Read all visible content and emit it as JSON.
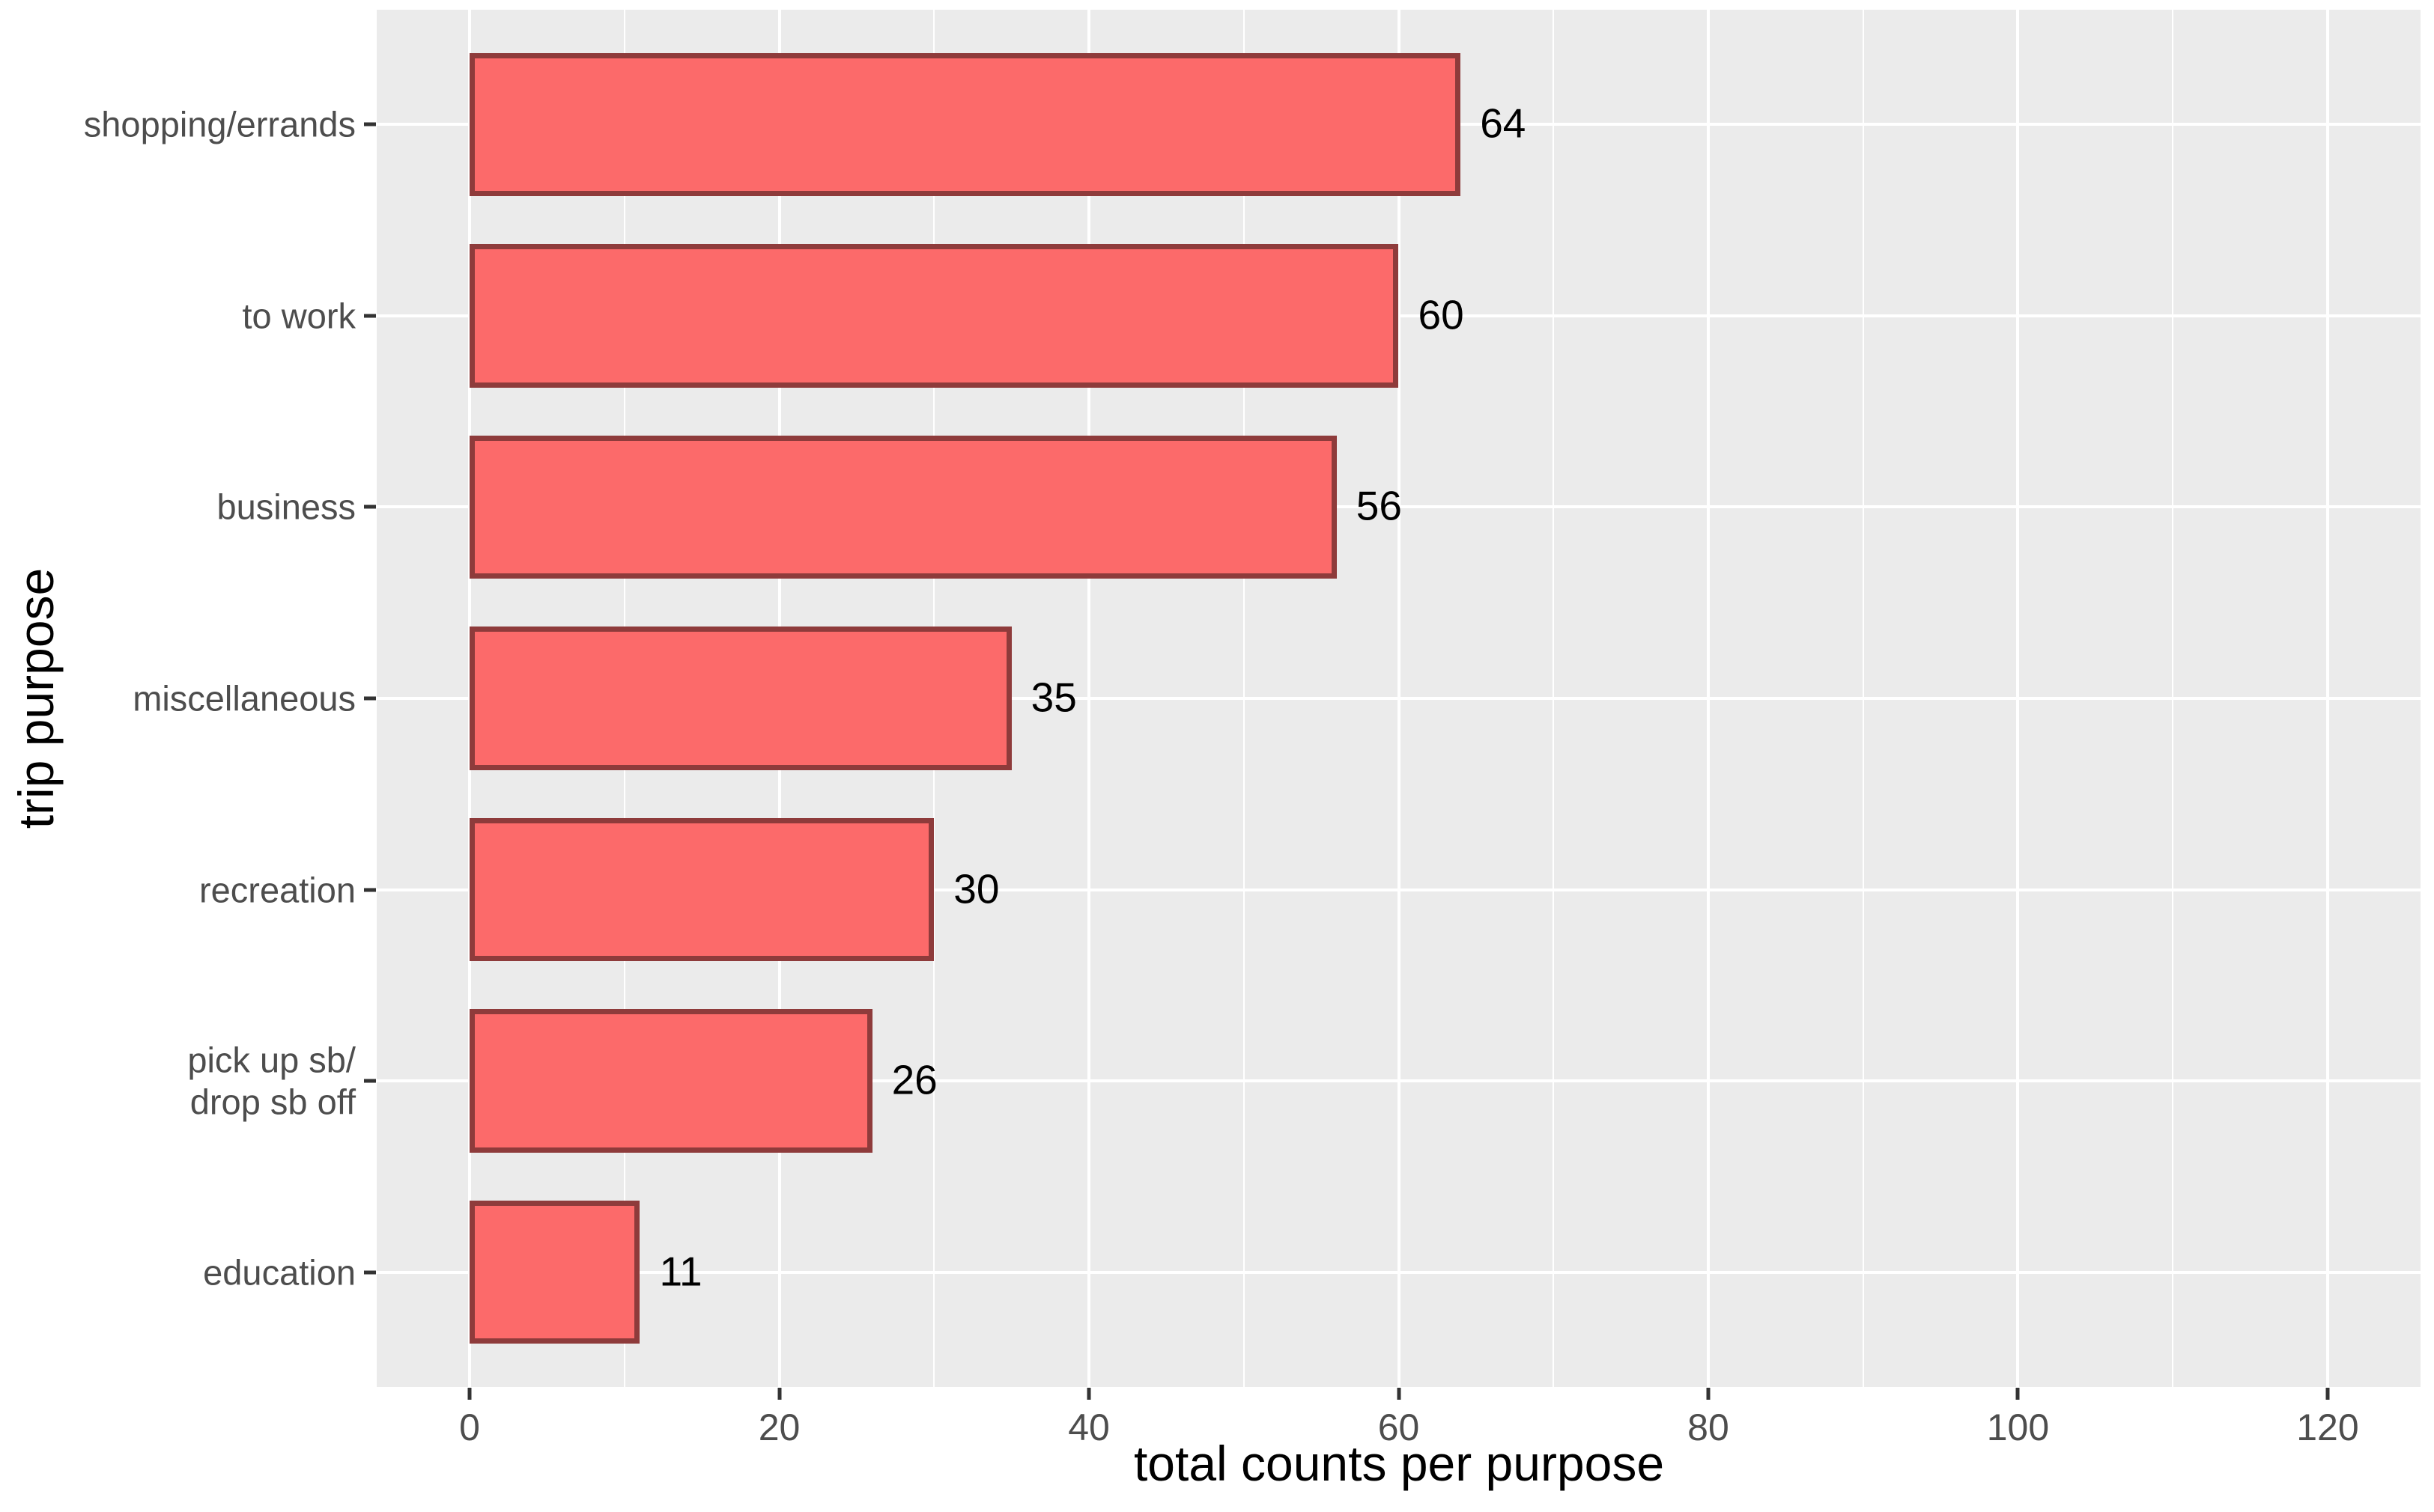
{
  "chart_data": {
    "type": "bar",
    "orientation": "horizontal",
    "title": "",
    "xlabel": "total counts per purpose",
    "ylabel": "trip purpose",
    "categories": [
      "shopping/errands",
      "to work",
      "business",
      "miscellaneous",
      "recreation",
      "pick up sb/\ndrop sb off",
      "education"
    ],
    "values": [
      64,
      60,
      56,
      35,
      30,
      26,
      11
    ],
    "bar_labels": [
      "64",
      "60",
      "56",
      "35",
      "30",
      "26",
      "11"
    ],
    "x_tick_labels": [
      "0",
      "20",
      "40",
      "60",
      "80",
      "100",
      "120"
    ],
    "x_tick_values": [
      0,
      20,
      40,
      60,
      80,
      100,
      120
    ],
    "x_minor_tick_values": [
      10,
      30,
      50,
      70,
      90,
      110
    ],
    "xlim": [
      -6,
      126
    ],
    "ylim_slots": 7.2,
    "bar_width_fraction": 0.75,
    "grid": true,
    "legend": "none",
    "colors": {
      "bar_fill": "#FC6A6A",
      "bar_border": "#8E3B3B",
      "panel_background": "#EBEBEB",
      "gridline": "#FFFFFF",
      "tick_text": "#4D4D4D",
      "title_text": "#000000",
      "tick_mark": "#333333",
      "figure_background": "#FFFFFF"
    }
  }
}
